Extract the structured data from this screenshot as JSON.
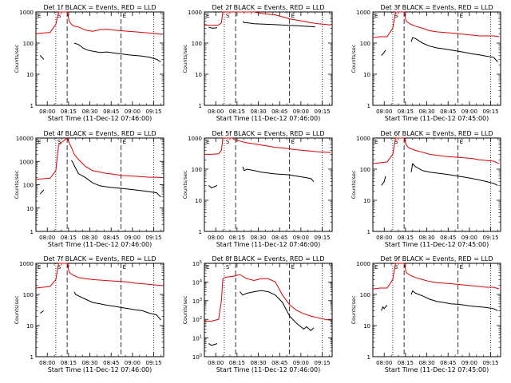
{
  "chart_data": [
    {
      "type": "line",
      "title": "Det 1f BLACK = Events, RED = LLD",
      "ylabel": "Counts/sec",
      "xlabel": "Start Time (11-Dec-12 07:46:00)",
      "xticks": [
        "08:00",
        "08:15",
        "08:30",
        "08:45",
        "09:00",
        "09:15"
      ],
      "yscale": "log",
      "ylim": [
        1,
        1000
      ],
      "yticks": [
        "1",
        "10",
        "100",
        "1000"
      ],
      "flags": [
        "E",
        "S",
        "E"
      ],
      "colors": {
        "events": "#000000",
        "lld": "#e00000"
      },
      "series": [
        {
          "name": "BLACK = Events",
          "x": [
            3,
            5.5,
            null,
            27,
            30,
            33,
            36,
            40,
            45,
            50,
            55,
            60,
            65,
            70,
            75,
            80,
            85,
            88
          ],
          "y": [
            40,
            30,
            null,
            100,
            90,
            70,
            60,
            55,
            50,
            52,
            48,
            45,
            42,
            40,
            38,
            35,
            30,
            25
          ]
        },
        {
          "name": "RED = LLD",
          "x": [
            0,
            5,
            10,
            14,
            16,
            22,
            23.5,
            25,
            27,
            30,
            35,
            40,
            45,
            50,
            55,
            60,
            65,
            70,
            75,
            80,
            85,
            89
          ],
          "y": [
            200,
            210,
            220,
            400,
            1000,
            1000,
            500,
            400,
            350,
            330,
            260,
            240,
            270,
            280,
            260,
            250,
            240,
            230,
            220,
            210,
            200,
            190
          ]
        }
      ]
    },
    {
      "type": "line",
      "title": "Det 2f BLACK = Events, RED = LLD",
      "ylabel": "Counts/sec",
      "xlabel": "Start Time (11-Dec-12 07:46:00)",
      "xticks": [
        "08:00",
        "08:15",
        "08:30",
        "08:45",
        "09:00",
        "09:15"
      ],
      "yscale": "log",
      "ylim": [
        1,
        1000
      ],
      "yticks": [
        "1",
        "10",
        "100",
        "1000"
      ],
      "flags": [
        "E",
        "S",
        "E"
      ],
      "colors": {
        "events": "#000000",
        "lld": "#e00000"
      },
      "series": [
        {
          "name": "BLACK = Events",
          "x": [
            3,
            6,
            9,
            null,
            27,
            28,
            30,
            35,
            40,
            45,
            50,
            55,
            60,
            65,
            70,
            75,
            78
          ],
          "y": [
            320,
            300,
            310,
            null,
            500,
            450,
            450,
            420,
            410,
            400,
            390,
            380,
            370,
            360,
            350,
            340,
            330
          ]
        },
        {
          "name": "RED = LLD",
          "x": [
            0,
            5,
            10,
            12,
            13,
            20,
            21,
            25,
            30,
            35,
            40,
            45,
            50,
            55,
            60,
            65,
            70,
            75,
            80,
            85,
            89
          ],
          "y": [
            380,
            370,
            380,
            450,
            1000,
            1000,
            1000,
            1100,
            1000,
            1000,
            900,
            850,
            800,
            700,
            600,
            550,
            500,
            450,
            420,
            400,
            380
          ]
        }
      ]
    },
    {
      "type": "line",
      "title": "Det 3f BLACK = Events, RED = LLD",
      "ylabel": "Counts/sec",
      "xlabel": "Start Time (11-Dec-12 07:45:00)",
      "xticks": [
        "08:00",
        "08:15",
        "08:30",
        "08:45",
        "09:00",
        "09:15"
      ],
      "yscale": "log",
      "ylim": [
        1,
        1000
      ],
      "yticks": [
        "1",
        "10",
        "100",
        "1000"
      ],
      "flags": [
        "E",
        "S",
        "E"
      ],
      "colors": {
        "events": "#000000",
        "lld": "#e00000"
      },
      "series": [
        {
          "name": "BLACK = Events",
          "x": [
            6,
            8,
            9,
            null,
            27,
            28,
            30,
            35,
            40,
            45,
            50,
            55,
            60,
            65,
            70,
            75,
            80,
            85,
            88
          ],
          "y": [
            40,
            50,
            60,
            null,
            110,
            150,
            140,
            100,
            80,
            70,
            65,
            60,
            55,
            50,
            45,
            42,
            38,
            35,
            25
          ]
        },
        {
          "name": "RED = LLD",
          "x": [
            0,
            5,
            10,
            14,
            16,
            22,
            23.5,
            25,
            27,
            30,
            35,
            40,
            45,
            50,
            55,
            60,
            65,
            70,
            75,
            80,
            85,
            89
          ],
          "y": [
            150,
            160,
            160,
            300,
            1000,
            1000,
            500,
            450,
            400,
            350,
            300,
            250,
            230,
            220,
            210,
            200,
            190,
            180,
            170,
            170,
            170,
            160
          ]
        }
      ]
    },
    {
      "type": "line",
      "title": "Det 4f BLACK = Events, RED = LLD",
      "ylabel": "Counts/sec",
      "xlabel": "Start Time (11-Dec-12 07:46:00)",
      "xticks": [
        "08:00",
        "08:15",
        "08:30",
        "08:45",
        "09:00",
        "09:15"
      ],
      "yscale": "log",
      "ylim": [
        1,
        10000
      ],
      "yticks": [
        "1",
        "10",
        "100",
        "1000",
        "10000"
      ],
      "flags": [
        "E",
        "S",
        "E"
      ],
      "colors": {
        "events": "#000000",
        "lld": "#e00000"
      },
      "series": [
        {
          "name": "BLACK = Events",
          "x": [
            3,
            5.5,
            null,
            25,
            26,
            28,
            30,
            35,
            40,
            45,
            50,
            55,
            60,
            65,
            70,
            75,
            80,
            85,
            88
          ],
          "y": [
            40,
            60,
            null,
            1100,
            900,
            500,
            300,
            200,
            120,
            90,
            80,
            75,
            70,
            65,
            60,
            55,
            50,
            45,
            30
          ]
        },
        {
          "name": "RED = LLD",
          "x": [
            0,
            5,
            10,
            14,
            16,
            22,
            23.5,
            25,
            27,
            30,
            35,
            40,
            45,
            50,
            55,
            60,
            65,
            70,
            75,
            80,
            85,
            89
          ],
          "y": [
            170,
            180,
            190,
            400,
            5000,
            10000,
            6000,
            4000,
            2000,
            1200,
            600,
            400,
            350,
            300,
            280,
            250,
            240,
            230,
            220,
            210,
            210,
            200
          ]
        }
      ]
    },
    {
      "type": "line",
      "title": "Det 5f BLACK = Events, RED = LLD",
      "ylabel": "Counts/sec",
      "xlabel": "Start Time (11-Dec-12 07:46:00)",
      "xticks": [
        "08:00",
        "08:15",
        "08:30",
        "08:45",
        "09:00",
        "09:15"
      ],
      "yscale": "log",
      "ylim": [
        1,
        1000
      ],
      "yticks": [
        "1",
        "10",
        "100",
        "1000"
      ],
      "flags": [
        "E",
        "S",
        "E"
      ],
      "colors": {
        "events": "#000000",
        "lld": "#e00000"
      },
      "series": [
        {
          "name": "BLACK = Events",
          "x": [
            3,
            5,
            9,
            null,
            27,
            28,
            30,
            35,
            40,
            45,
            50,
            55,
            60,
            65,
            70,
            75,
            77
          ],
          "y": [
            30,
            25,
            30,
            null,
            120,
            90,
            100,
            90,
            80,
            75,
            70,
            68,
            65,
            60,
            55,
            50,
            40
          ]
        },
        {
          "name": "RED = LLD",
          "x": [
            0,
            5,
            10,
            12,
            13,
            20,
            21,
            25,
            30,
            35,
            40,
            45,
            50,
            55,
            60,
            65,
            70,
            75,
            80,
            85,
            89
          ],
          "y": [
            300,
            300,
            310,
            400,
            1000,
            1000,
            900,
            800,
            700,
            650,
            600,
            550,
            500,
            480,
            450,
            420,
            400,
            380,
            360,
            350,
            340
          ]
        }
      ]
    },
    {
      "type": "line",
      "title": "Det 6f BLACK = Events, RED = LLD",
      "ylabel": "Counts/sec",
      "xlabel": "Start Time (11-Dec-12 07:45:00)",
      "xticks": [
        "08:00",
        "08:15",
        "08:30",
        "08:45",
        "09:00",
        "09:15"
      ],
      "yscale": "log",
      "ylim": [
        1,
        1000
      ],
      "yticks": [
        "1",
        "10",
        "100",
        "1000"
      ],
      "flags": [
        "E",
        "S",
        "E"
      ],
      "colors": {
        "events": "#000000",
        "lld": "#e00000"
      },
      "series": [
        {
          "name": "BLACK = Events",
          "x": [
            6,
            8,
            9,
            null,
            27,
            28,
            30,
            35,
            40,
            45,
            50,
            55,
            60,
            65,
            70,
            75,
            80,
            85,
            88
          ],
          "y": [
            30,
            40,
            60,
            null,
            80,
            150,
            120,
            90,
            80,
            75,
            70,
            65,
            60,
            55,
            50,
            45,
            40,
            35,
            30
          ]
        },
        {
          "name": "RED = LLD",
          "x": [
            0,
            5,
            10,
            14,
            16,
            22,
            23.5,
            25,
            27,
            30,
            35,
            40,
            45,
            50,
            55,
            60,
            65,
            70,
            75,
            80,
            85,
            89
          ],
          "y": [
            150,
            160,
            170,
            300,
            1000,
            1000,
            600,
            500,
            450,
            400,
            350,
            300,
            280,
            260,
            250,
            240,
            230,
            220,
            200,
            190,
            180,
            150
          ]
        }
      ]
    },
    {
      "type": "line",
      "title": "Det 7f BLACK = Events, RED = LLD",
      "ylabel": "Counts/sec",
      "xlabel": "Start Time (11-Dec-12 07:46:00)",
      "xticks": [
        "08:00",
        "08:15",
        "08:30",
        "08:45",
        "09:00",
        "09:15"
      ],
      "yscale": "log",
      "ylim": [
        1,
        1000
      ],
      "yticks": [
        "1",
        "10",
        "100",
        "1000"
      ],
      "flags": [
        "E",
        "S",
        "E"
      ],
      "colors": {
        "events": "#000000",
        "lld": "#e00000"
      },
      "series": [
        {
          "name": "BLACK = Events",
          "x": [
            3,
            5.5,
            null,
            27,
            28,
            30,
            35,
            40,
            45,
            50,
            55,
            60,
            65,
            70,
            75,
            80,
            85,
            88
          ],
          "y": [
            25,
            30,
            null,
            120,
            100,
            90,
            70,
            55,
            50,
            45,
            42,
            38,
            35,
            32,
            30,
            25,
            22,
            15
          ]
        },
        {
          "name": "RED = LLD",
          "x": [
            0,
            5,
            10,
            14,
            16,
            22,
            23.5,
            25,
            27,
            30,
            35,
            40,
            45,
            50,
            55,
            60,
            65,
            70,
            75,
            80,
            85,
            89
          ],
          "y": [
            160,
            170,
            180,
            300,
            1000,
            1000,
            500,
            450,
            400,
            350,
            320,
            300,
            290,
            280,
            270,
            260,
            250,
            230,
            220,
            210,
            200,
            190
          ]
        }
      ]
    },
    {
      "type": "line",
      "title": "Det 8f BLACK = Events, RED = LLD",
      "ylabel": "Counts/sec",
      "xlabel": "Start Time (11-Dec-12 07:46:00)",
      "xticks": [
        "08:00",
        "08:15",
        "08:30",
        "08:45",
        "09:00",
        "09:15"
      ],
      "yscale": "log",
      "ylim": [
        1,
        100000
      ],
      "yticks": [
        "10^0",
        "10^1",
        "10^2",
        "10^3",
        "10^4",
        "10^5"
      ],
      "flags": [
        "E",
        "S",
        "E"
      ],
      "colors": {
        "events": "#000000",
        "lld": "#e00000"
      },
      "series": [
        {
          "name": "BLACK = Events",
          "x": [
            3,
            5,
            9,
            null,
            25,
            27,
            30,
            35,
            40,
            45,
            50,
            55,
            60,
            65,
            70,
            72,
            75,
            77
          ],
          "y": [
            5,
            4,
            5,
            null,
            3000,
            2000,
            2500,
            3000,
            3500,
            3000,
            2000,
            800,
            150,
            60,
            30,
            40,
            25,
            35
          ]
        },
        {
          "name": "RED = LLD",
          "x": [
            0,
            5,
            10,
            12,
            13,
            15,
            20,
            25,
            30,
            35,
            40,
            45,
            50,
            55,
            60,
            65,
            70,
            75,
            80,
            85,
            89
          ],
          "y": [
            80,
            80,
            100,
            1000,
            15000,
            18000,
            20000,
            25000,
            15000,
            12000,
            15000,
            15000,
            10000,
            2000,
            600,
            300,
            200,
            150,
            120,
            100,
            90
          ]
        }
      ]
    },
    {
      "type": "line",
      "title": "Det 9f BLACK = Events, RED = LLD",
      "ylabel": "Counts/sec",
      "xlabel": "Start Time (11-Dec-12 07:45:00)",
      "xticks": [
        "08:00",
        "08:15",
        "08:30",
        "08:45",
        "09:00",
        "09:15"
      ],
      "yscale": "log",
      "ylim": [
        1,
        1000
      ],
      "yticks": [
        "1",
        "10",
        "100",
        "1000"
      ],
      "flags": [
        "E",
        "S",
        "E"
      ],
      "colors": {
        "events": "#000000",
        "lld": "#e00000"
      },
      "series": [
        {
          "name": "BLACK = Events",
          "x": [
            6,
            7,
            8,
            9,
            10,
            null,
            27,
            28,
            30,
            35,
            40,
            45,
            50,
            55,
            60,
            65,
            70,
            75,
            80,
            85,
            88
          ],
          "y": [
            30,
            40,
            35,
            40,
            45,
            null,
            100,
            130,
            110,
            90,
            70,
            60,
            55,
            50,
            48,
            45,
            42,
            40,
            38,
            35,
            30
          ]
        },
        {
          "name": "RED = LLD",
          "x": [
            0,
            5,
            10,
            14,
            16,
            22,
            23.5,
            25,
            27,
            30,
            35,
            40,
            45,
            50,
            55,
            60,
            65,
            70,
            75,
            80,
            85,
            89
          ],
          "y": [
            150,
            160,
            160,
            300,
            1000,
            1000,
            500,
            450,
            400,
            350,
            300,
            260,
            240,
            230,
            220,
            210,
            200,
            190,
            180,
            170,
            170,
            150
          ]
        }
      ]
    }
  ]
}
